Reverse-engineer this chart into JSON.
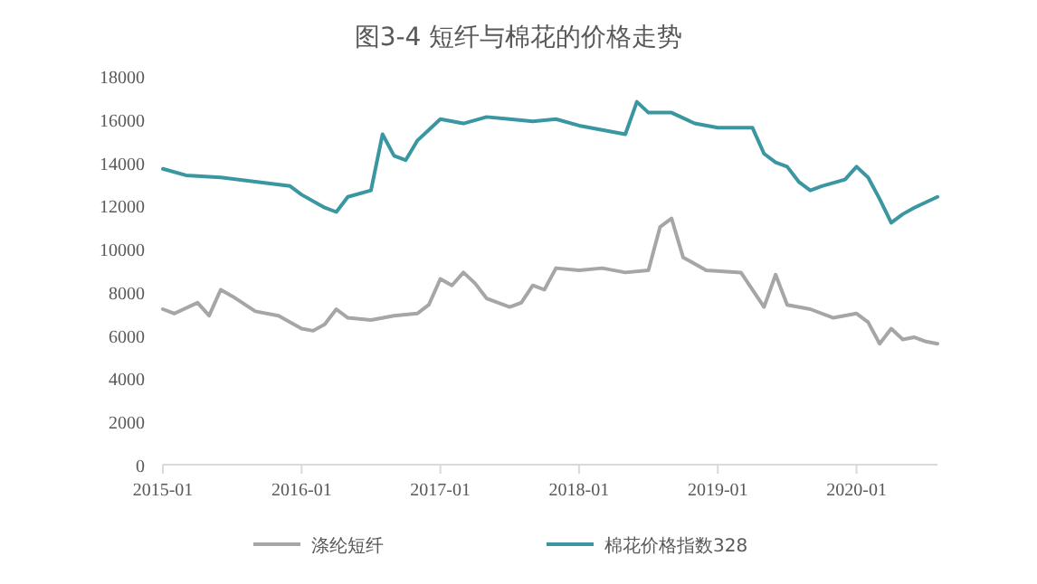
{
  "chart_data": {
    "type": "line",
    "title": "图3-4  短纤与棉花的价格走势",
    "x": [
      "2015-01",
      "2015-02",
      "2015-04",
      "2015-05",
      "2015-06",
      "2015-07",
      "2015-09",
      "2015-11",
      "2016-01",
      "2016-02",
      "2016-03",
      "2016-04",
      "2016-05",
      "2016-07",
      "2016-09",
      "2016-11",
      "2016-12",
      "2017-01",
      "2017-02",
      "2017-03",
      "2017-04",
      "2017-05",
      "2017-07",
      "2017-08",
      "2017-09",
      "2017-10",
      "2017-11",
      "2018-01",
      "2018-03",
      "2018-05",
      "2018-07",
      "2018-08",
      "2018-09",
      "2018-10",
      "2018-12",
      "2019-03",
      "2019-05",
      "2019-06",
      "2019-07",
      "2019-09",
      "2019-11",
      "2020-01",
      "2020-02",
      "2020-03",
      "2020-04",
      "2020-05",
      "2020-06",
      "2020-07",
      "2020-08"
    ],
    "series": [
      {
        "name": "涤纶短纤",
        "color": "#a6a6a6",
        "values": [
          7200,
          7000,
          7500,
          6900,
          8100,
          7800,
          7100,
          6900,
          6300,
          6200,
          6500,
          7200,
          6800,
          6700,
          6900,
          7000,
          7400,
          8600,
          8300,
          8900,
          8400,
          7700,
          7300,
          7500,
          8300,
          8100,
          9100,
          9000,
          9100,
          8900,
          9000,
          11000,
          11400,
          9600,
          9000,
          8900,
          7300,
          8800,
          7400,
          7200,
          6800,
          7000,
          6600,
          5600,
          6300,
          5800,
          5900,
          5700,
          5600
        ]
      },
      {
        "name": "棉花价格指数328",
        "color": "#3a96a0",
        "x": [
          "2015-01",
          "2015-03",
          "2015-06",
          "2015-09",
          "2015-12",
          "2016-01",
          "2016-03",
          "2016-04",
          "2016-05",
          "2016-07",
          "2016-08",
          "2016-09",
          "2016-10",
          "2016-11",
          "2016-12",
          "2017-01",
          "2017-03",
          "2017-05",
          "2017-07",
          "2017-09",
          "2017-11",
          "2018-01",
          "2018-03",
          "2018-05",
          "2018-06",
          "2018-07",
          "2018-09",
          "2018-11",
          "2019-01",
          "2019-04",
          "2019-05",
          "2019-06",
          "2019-07",
          "2019-08",
          "2019-09",
          "2019-10",
          "2019-12",
          "2020-01",
          "2020-02",
          "2020-03",
          "2020-04",
          "2020-05",
          "2020-06",
          "2020-08"
        ],
        "values": [
          13700,
          13400,
          13300,
          13100,
          12900,
          12500,
          11900,
          11700,
          12400,
          12700,
          15300,
          14300,
          14100,
          15000,
          15500,
          16000,
          15800,
          16100,
          16000,
          15900,
          16000,
          15700,
          15500,
          15300,
          16800,
          16300,
          16300,
          15800,
          15600,
          15600,
          14400,
          14000,
          13800,
          13100,
          12700,
          12900,
          13200,
          13800,
          13300,
          12300,
          11200,
          11600,
          11900,
          12400
        ]
      }
    ],
    "xlim": [
      "2015-01",
      "2020-08"
    ],
    "xticks": [
      {
        "value": "2015-01",
        "label": "2015-01"
      },
      {
        "value": "2016-01",
        "label": "2016-01"
      },
      {
        "value": "2017-01",
        "label": "2017-01"
      },
      {
        "value": "2018-01",
        "label": "2018-01"
      },
      {
        "value": "2019-01",
        "label": "2019-01"
      },
      {
        "value": "2020-01",
        "label": "2020-01"
      }
    ],
    "ylim": [
      0,
      18000
    ],
    "yticks": [
      0,
      2000,
      4000,
      6000,
      8000,
      10000,
      12000,
      14000,
      16000,
      18000
    ],
    "grid": false,
    "legend": "bottom",
    "line_style": "solid"
  }
}
